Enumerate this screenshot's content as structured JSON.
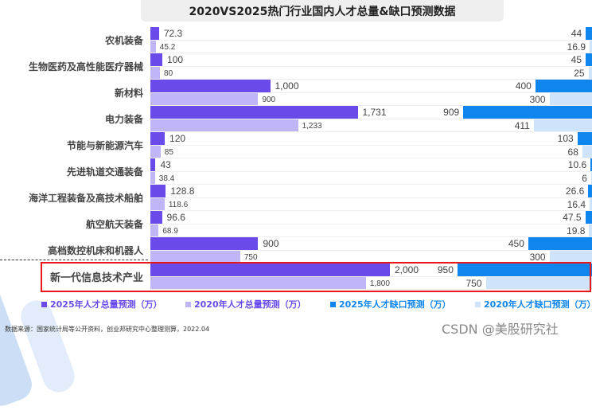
{
  "chart_data": {
    "type": "bar",
    "title": "2020VS2025热门行业国内人才总量&缺口预测数据",
    "categories": [
      "农机装备",
      "生物医药及高性能医疗器械",
      "新材料",
      "电力装备",
      "节能与新能源汽车",
      "先进轨道交通装备",
      "海洋工程装备及高技术船舶",
      "航空航天装备",
      "高档数控机床和机器人",
      "新一代信息技术产业"
    ],
    "series": [
      {
        "name": "2025年人才总量预测（万）",
        "color": "#6a4bea",
        "values": [
          72.3,
          100,
          1000,
          1731,
          120,
          43,
          128.8,
          96.6,
          900,
          2000
        ],
        "labels": [
          "72.3",
          "100",
          "1,000",
          "1,731",
          "120",
          "43",
          "128.8",
          "96.6",
          "900",
          "2,000"
        ]
      },
      {
        "name": "2020年人才总量预测（万）",
        "color": "#c0b5f7",
        "values": [
          45.2,
          80,
          900,
          1233,
          85,
          38.4,
          118.6,
          68.9,
          750,
          1800
        ],
        "labels": [
          "45.2",
          "80",
          "900",
          "1,233",
          "85",
          "38.4",
          "118.6",
          "68.9",
          "750",
          "1,800"
        ]
      },
      {
        "name": "2025年人才缺口预测（万）",
        "color": "#0f86ee",
        "values": [
          44,
          45,
          400,
          909,
          103,
          10.6,
          26.6,
          47.5,
          450,
          950
        ],
        "labels": [
          "44",
          "45",
          "400",
          "909",
          "103",
          "10.6",
          "26.6",
          "47.5",
          "450",
          "950"
        ]
      },
      {
        "name": "2020年人才缺口预测（万）",
        "color": "#cfe4fb",
        "values": [
          16.9,
          25,
          300,
          411,
          68,
          6,
          16.4,
          19.8,
          300,
          750
        ],
        "labels": [
          "16.9",
          "25",
          "300",
          "411",
          "68",
          "6",
          "16.4",
          "19.8",
          "300",
          "750"
        ]
      }
    ],
    "highlighted_category": "新一代信息技术产业"
  },
  "source": "数据来源：国家统计局等公开资料，创业邦研究中心整理测算，2022.04",
  "watermark": "CSDN @美股研究社"
}
